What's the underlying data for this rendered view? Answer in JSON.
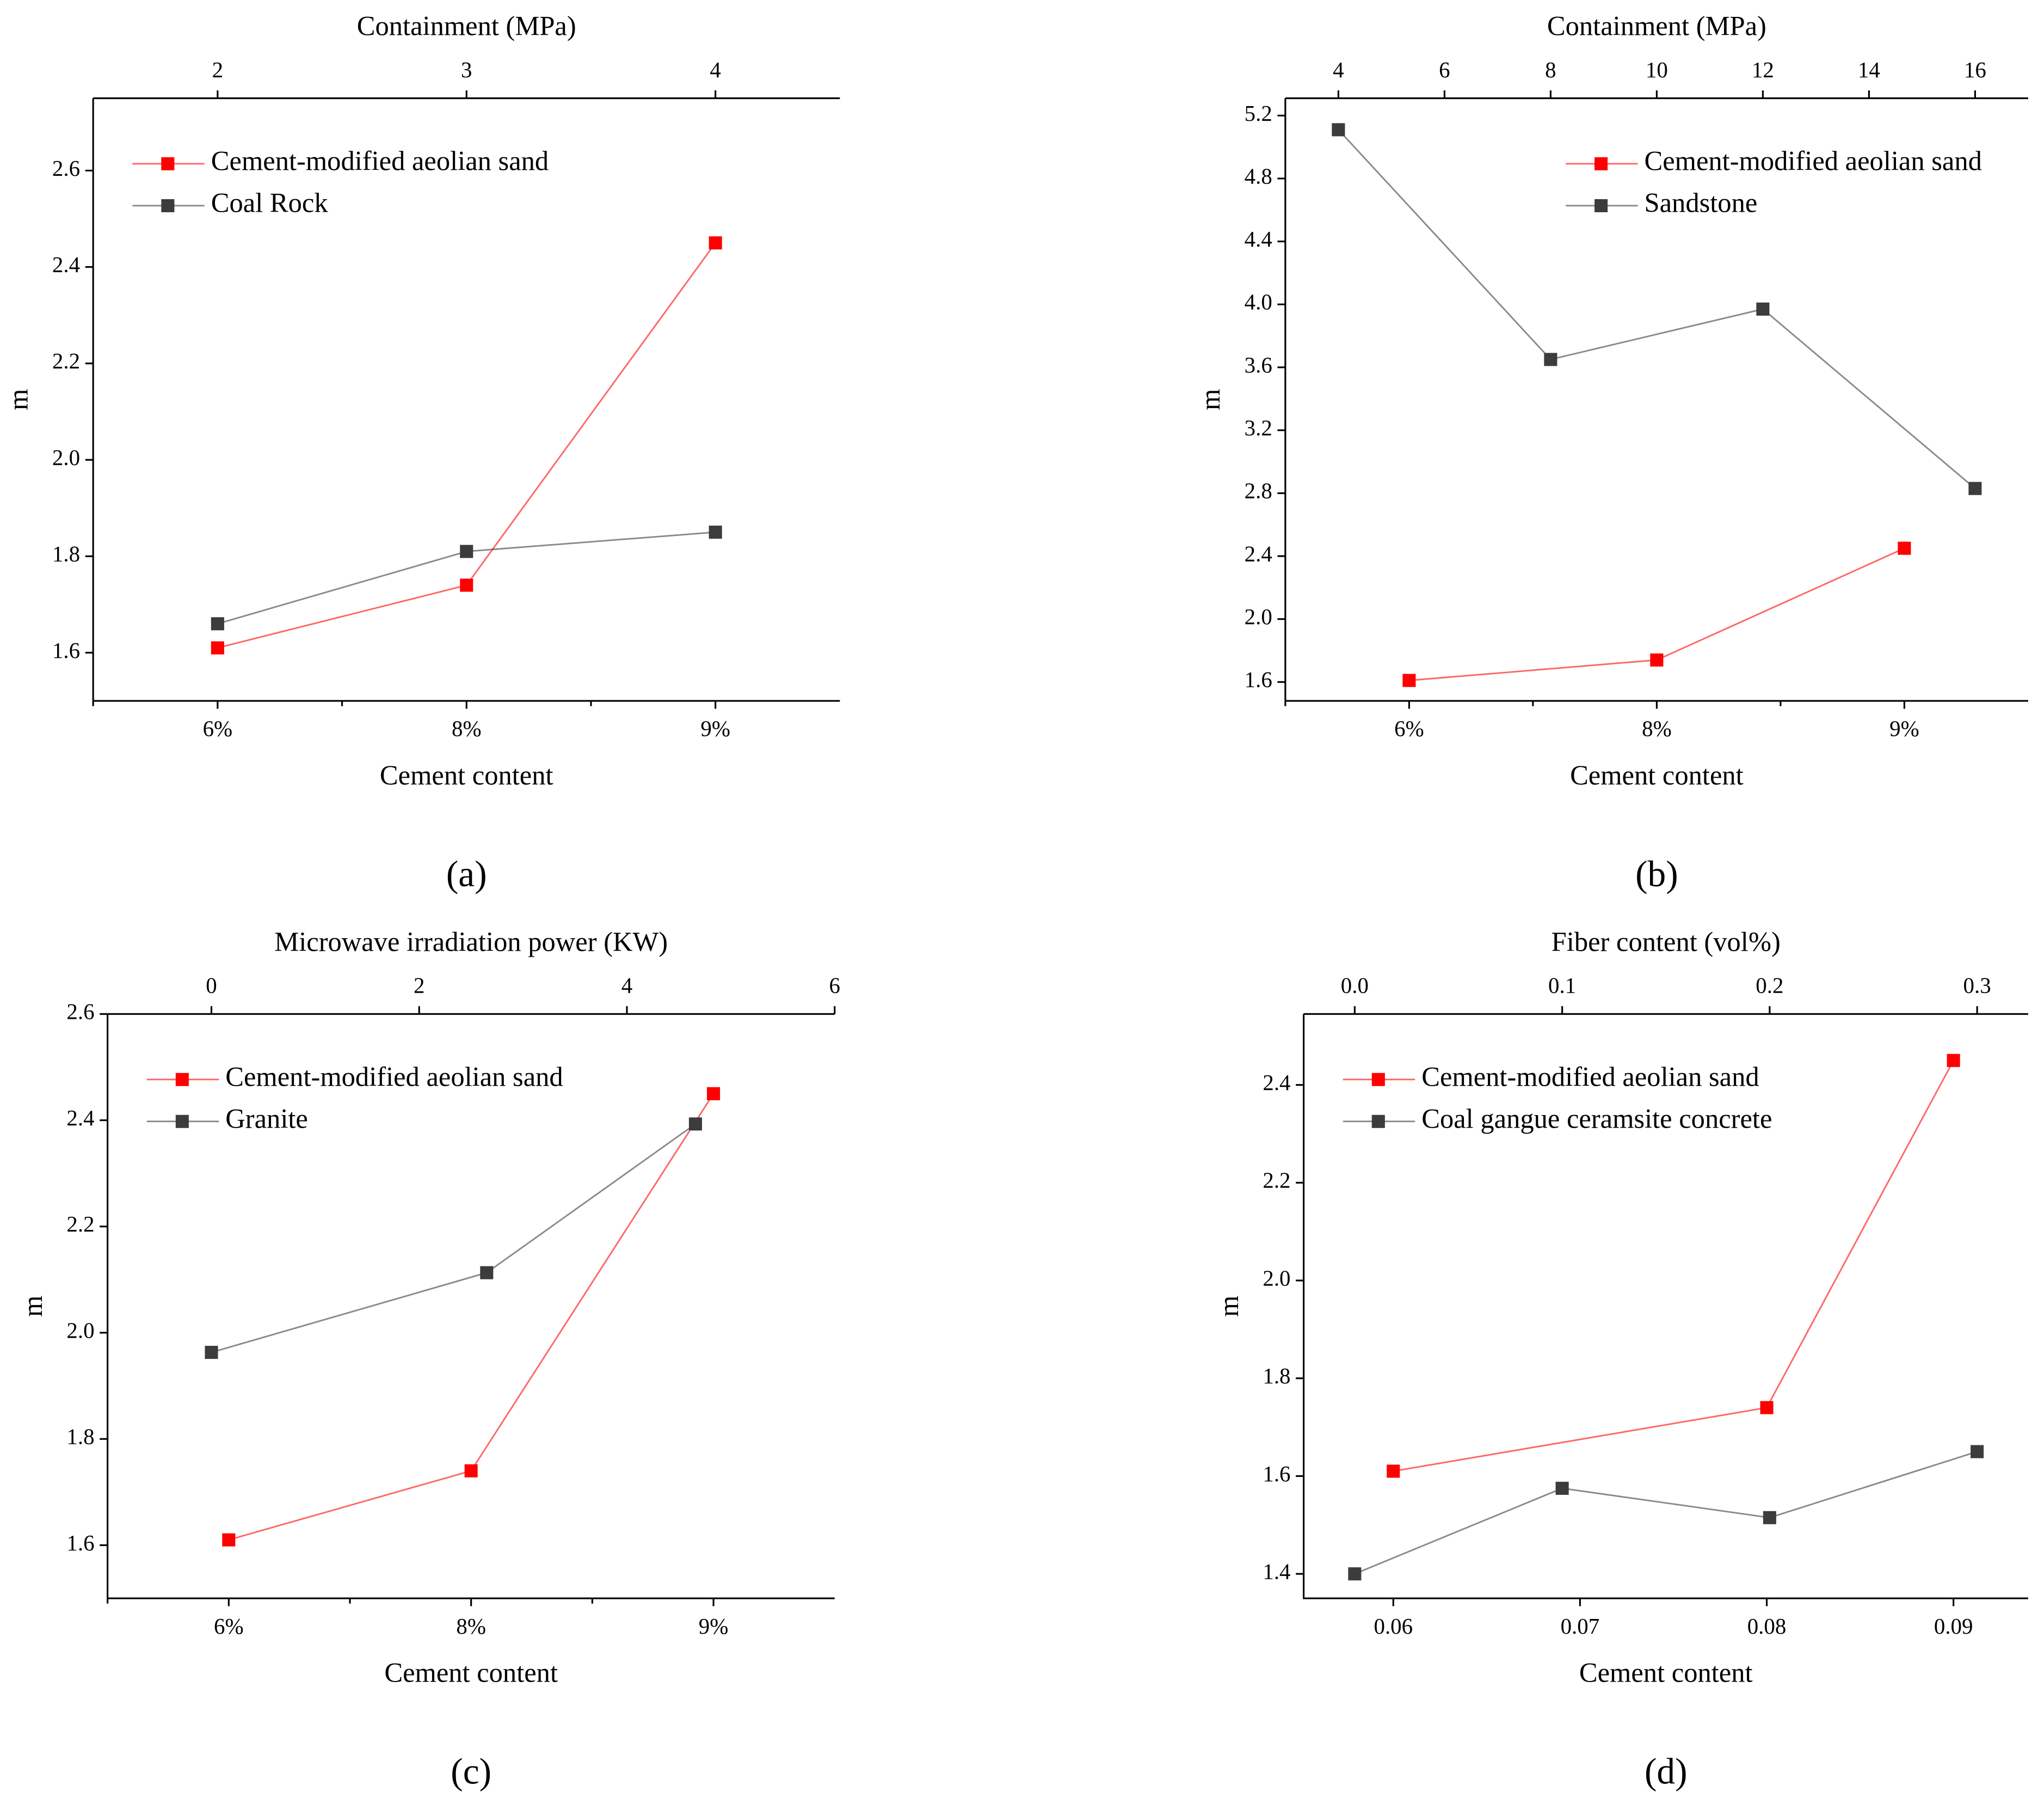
{
  "chart_data": [
    {
      "type": "line",
      "panel_label": "(a)",
      "x_label": "Cement content",
      "x2_label": "Containment (MPa)",
      "y_label": "m",
      "categories": [
        "6%",
        "8%",
        "9%"
      ],
      "x2lim": [
        1.5,
        4.5
      ],
      "x2ticks": [
        2,
        3,
        4
      ],
      "ylim": [
        1.5,
        2.75
      ],
      "yticks": [
        1.6,
        1.8,
        {
          "value": 2,
          "label": "2.0"
        },
        2.2,
        2.4,
        2.6
      ],
      "legend": "upper left",
      "series": [
        {
          "name": "Cement-modified aeolian sand",
          "color": "#ff0000",
          "values": [
            1.61,
            1.74,
            2.45
          ]
        },
        {
          "name": "Coal Rock",
          "color": "#3c3c3c",
          "axis": "x2",
          "x": [
            2,
            3,
            4
          ],
          "values": [
            1.66,
            1.81,
            1.85
          ]
        }
      ]
    },
    {
      "type": "line",
      "panel_label": "(b)",
      "x_label": "Cement content",
      "x2_label": "Containment (MPa)",
      "y_label": "m",
      "categories": [
        "6%",
        "8%",
        "9%"
      ],
      "x2lim": [
        3,
        17
      ],
      "x2ticks": [
        4,
        6,
        8,
        10,
        12,
        14,
        16
      ],
      "ylim": [
        1.48,
        5.31
      ],
      "yticks": [
        1.6,
        {
          "value": 2,
          "label": "2.0"
        },
        2.4,
        2.8,
        3.2,
        3.6,
        {
          "value": 4,
          "label": "4.0"
        },
        4.4,
        4.8,
        5.2
      ],
      "legend": "upper right",
      "series": [
        {
          "name": "Cement-modified aeolian sand",
          "color": "#ff0000",
          "values": [
            1.61,
            1.74,
            2.45
          ]
        },
        {
          "name": "Sandstone",
          "color": "#3c3c3c",
          "axis": "x2",
          "x": [
            4,
            8,
            12,
            16
          ],
          "values": [
            5.11,
            3.65,
            3.97,
            2.83
          ]
        }
      ]
    },
    {
      "type": "line",
      "panel_label": "(c)",
      "x_label": "Cement content",
      "x2_label": "Microwave irradiation power (KW)",
      "y_label": "m",
      "categories": [
        "6%",
        "8%",
        "9%"
      ],
      "x2lim": [
        -1,
        6
      ],
      "x2ticks": [
        0,
        2,
        4,
        6
      ],
      "ylim": [
        1.5,
        2.6
      ],
      "yticks": [
        1.6,
        1.8,
        {
          "value": 2,
          "label": "2.0"
        },
        2.2,
        2.4,
        2.6
      ],
      "legend": "upper left",
      "series": [
        {
          "name": "Cement-modified aeolian sand",
          "color": "#ff0000",
          "values": [
            1.61,
            1.74,
            2.45
          ]
        },
        {
          "name": "Granite",
          "color": "#3c3c3c",
          "axis": "x2",
          "x": [
            0,
            2.65,
            4.66
          ],
          "values": [
            1.963,
            2.113,
            2.393
          ]
        }
      ]
    },
    {
      "type": "line",
      "panel_label": "(d)",
      "x_label": "Cement content",
      "x2_label": "Fiber content (vol%)",
      "y_label": "m",
      "xlim": [
        0.0552,
        0.094
      ],
      "xticks": [
        0.06,
        0.07,
        0.08,
        0.09
      ],
      "x2lim": [
        -0.0246,
        0.3246
      ],
      "x2ticks": [
        {
          "value": 0,
          "label": "0.0"
        },
        0.1,
        0.2,
        0.3
      ],
      "ylim": [
        1.35,
        2.545
      ],
      "yticks": [
        1.4,
        1.6,
        1.8,
        {
          "value": 2,
          "label": "2.0"
        },
        2.2,
        2.4
      ],
      "legend": "upper left",
      "series": [
        {
          "name": "Cement-modified aeolian sand",
          "color": "#ff0000",
          "x": [
            0.06,
            0.08,
            0.09
          ],
          "values": [
            1.61,
            1.74,
            2.45
          ]
        },
        {
          "name": "Coal gangue ceramsite concrete",
          "color": "#3c3c3c",
          "axis": "x2",
          "x": [
            0,
            0.1,
            0.2,
            0.3
          ],
          "values": [
            1.4,
            1.575,
            1.515,
            1.65
          ]
        }
      ]
    }
  ]
}
